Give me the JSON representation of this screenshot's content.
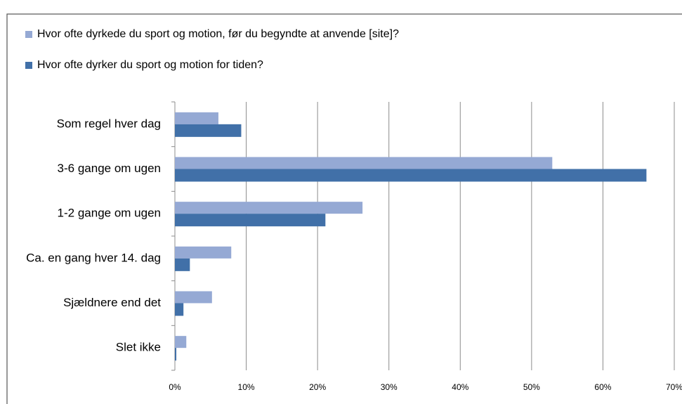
{
  "chart_data": {
    "type": "barh",
    "categories": [
      "Som regel hver dag",
      "3-6 gange om ugen",
      "1-2 gange om ugen",
      "Ca. en gang hver 14. dag",
      "Sjældnere end det",
      "Slet ikke"
    ],
    "series": [
      {
        "name": "Hvor ofte dyrkede du sport og motion, før du begyndte at anvende [site]?",
        "color": "#95a9d4",
        "values": [
          6.1,
          52.9,
          26.3,
          7.9,
          5.2,
          1.6
        ]
      },
      {
        "name": "Hvor ofte dyrker du sport og motion for tiden?",
        "color": "#4170a8",
        "values": [
          9.3,
          66.1,
          21.1,
          2.1,
          1.2,
          0.2
        ]
      }
    ],
    "xlim": [
      0,
      70
    ],
    "xticks": [
      {
        "value": 0,
        "label": "0%"
      },
      {
        "value": 10,
        "label": "10%"
      },
      {
        "value": 20,
        "label": "20%"
      },
      {
        "value": 30,
        "label": "30%"
      },
      {
        "value": 40,
        "label": "40%"
      },
      {
        "value": 50,
        "label": "50%"
      },
      {
        "value": 60,
        "label": "60%"
      },
      {
        "value": 70,
        "label": "70%"
      }
    ],
    "grid": true,
    "legend": "top-left"
  }
}
